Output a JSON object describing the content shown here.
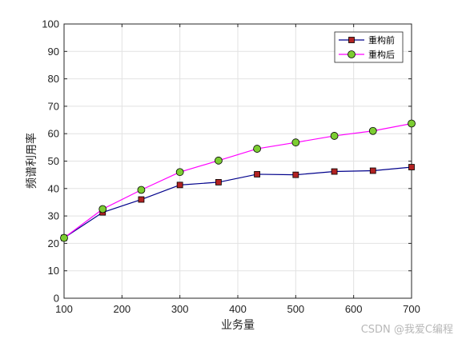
{
  "chart_data": {
    "type": "line",
    "xlabel": "业务量",
    "ylabel": "频谱利用率",
    "xlim": [
      100,
      700
    ],
    "ylim": [
      0,
      100
    ],
    "x_ticks": [
      100,
      200,
      300,
      400,
      500,
      600,
      700
    ],
    "y_ticks": [
      0,
      10,
      20,
      30,
      40,
      50,
      60,
      70,
      80,
      90,
      100
    ],
    "grid": true,
    "legend_position": "top-right",
    "x": [
      100,
      166.7,
      233.3,
      300,
      366.7,
      433.3,
      500,
      566.7,
      633.3,
      700
    ],
    "series": [
      {
        "name": "重构前",
        "color": "#00008b",
        "marker": "square",
        "marker_color": "#b22222",
        "values": [
          22,
          31.3,
          36,
          41.3,
          42.3,
          45.2,
          45,
          46.2,
          46.5,
          47.8
        ]
      },
      {
        "name": "重构后",
        "color": "#ff00ff",
        "marker": "circle",
        "marker_color": "#7ccd32",
        "values": [
          22,
          32.5,
          39.5,
          46,
          50.2,
          54.5,
          56.8,
          59.2,
          61,
          63.7
        ]
      }
    ]
  },
  "watermark": "CSDN @我爱C编程"
}
